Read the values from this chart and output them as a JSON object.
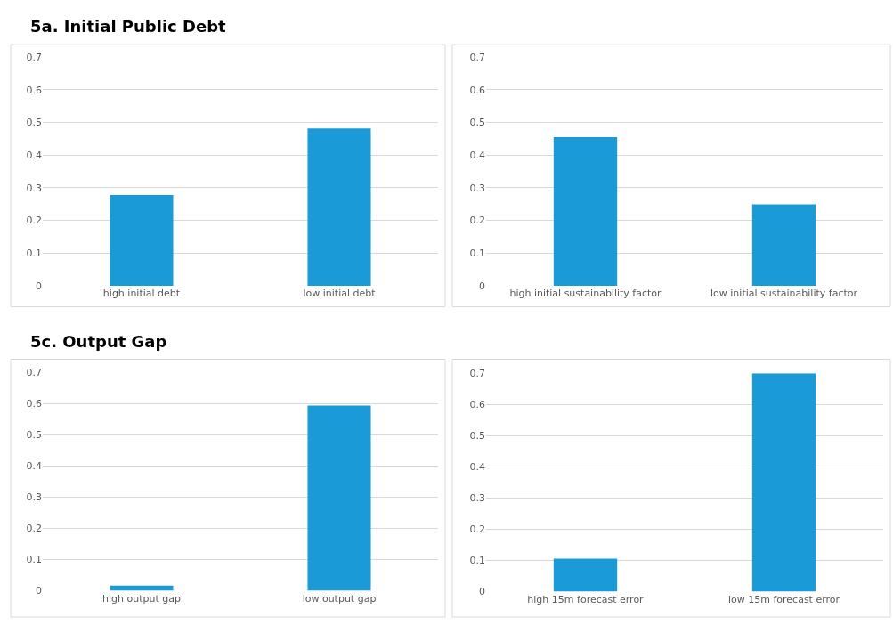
{
  "chart_data": [
    {
      "type": "bar",
      "title": "5a. Initial Public Debt",
      "categories": [
        "high initial debt",
        "low initial debt"
      ],
      "values": [
        0.278,
        0.481
      ],
      "color": "#1a9bd7",
      "ylim": [
        0,
        0.7
      ],
      "yticks": [
        0,
        0.1,
        0.2,
        0.3,
        0.4,
        0.5,
        0.6,
        0.7
      ],
      "grid": "y"
    },
    {
      "type": "bar",
      "categories": [
        "high initial sustainability factor",
        "low initial sustainability factor"
      ],
      "values": [
        0.455,
        0.249
      ],
      "color": "#1a9bd7",
      "ylim": [
        0,
        0.7
      ],
      "yticks": [
        0,
        0.1,
        0.2,
        0.3,
        0.4,
        0.5,
        0.6,
        0.7
      ],
      "grid": "y"
    },
    {
      "type": "bar",
      "title": "5c. Output Gap",
      "categories": [
        "high output gap",
        "low output gap"
      ],
      "values": [
        0.017,
        0.594
      ],
      "color": "#1a9bd7",
      "ylim": [
        0,
        0.7
      ],
      "yticks": [
        0,
        0.1,
        0.2,
        0.3,
        0.4,
        0.5,
        0.6,
        0.7
      ],
      "grid": "y"
    },
    {
      "type": "bar",
      "categories": [
        "high 15m forecast error",
        "low 15m forecast error"
      ],
      "values": [
        0.106,
        0.7
      ],
      "color": "#1a9bd7",
      "ylim": [
        0,
        0.7
      ],
      "yticks": [
        0,
        0.1,
        0.2,
        0.3,
        0.4,
        0.5,
        0.6,
        0.7
      ],
      "grid": "y"
    }
  ]
}
